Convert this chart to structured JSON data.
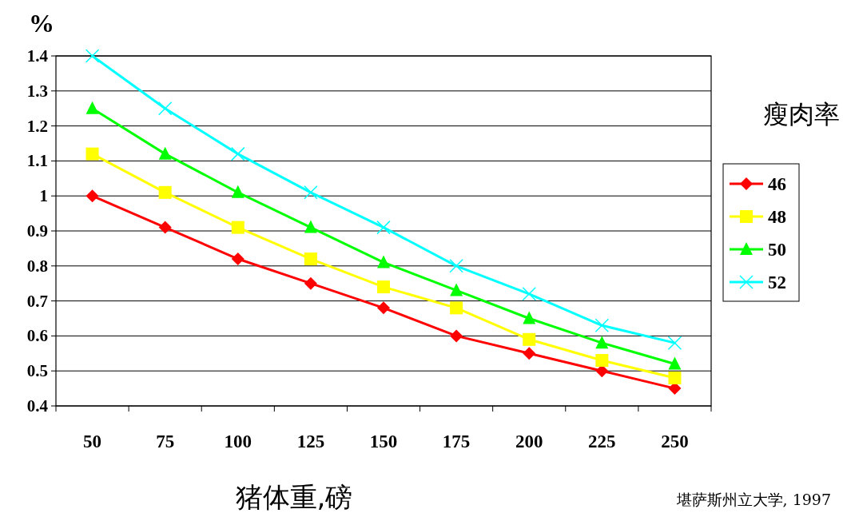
{
  "chart_data": {
    "type": "line",
    "ylabel": "%",
    "xlabel": "猪体重,磅",
    "legend_title": "瘦肉率",
    "annotations": [
      "堪萨斯州立大学, 1997"
    ],
    "categories": [
      "50",
      "75",
      "100",
      "125",
      "150",
      "175",
      "200",
      "225",
      "250"
    ],
    "series": [
      {
        "name": "46",
        "color": "#ff0000",
        "marker": "diamond",
        "values": [
          1.0,
          0.91,
          0.82,
          0.75,
          0.68,
          0.6,
          0.55,
          0.5,
          0.45
        ]
      },
      {
        "name": "48",
        "color": "#ffff00",
        "marker": "square",
        "values": [
          1.12,
          1.01,
          0.91,
          0.82,
          0.74,
          0.68,
          0.59,
          0.53,
          0.48
        ]
      },
      {
        "name": "50",
        "color": "#00ff00",
        "marker": "triangle",
        "values": [
          1.25,
          1.12,
          1.01,
          0.91,
          0.81,
          0.73,
          0.65,
          0.58,
          0.52
        ]
      },
      {
        "name": "52",
        "color": "#00ffff",
        "marker": "cross",
        "values": [
          1.4,
          1.25,
          1.12,
          1.01,
          0.91,
          0.8,
          0.72,
          0.63,
          0.58
        ]
      }
    ],
    "ylim": [
      0.4,
      1.4
    ],
    "yticks": [
      0.4,
      0.5,
      0.6,
      0.7,
      0.8,
      0.9,
      1,
      1.1,
      1.2,
      1.3,
      1.4
    ],
    "grid": "y",
    "legend": "right",
    "line_style": "solid"
  }
}
